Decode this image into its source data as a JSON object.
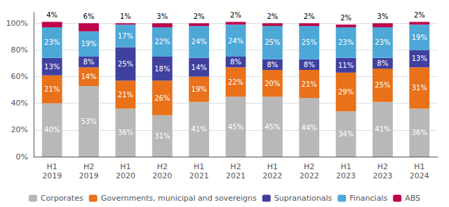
{
  "chart_data": {
    "type": "bar",
    "stacked": true,
    "categories": [
      "H1\n2019",
      "H2\n2019",
      "H1\n2020",
      "H2\n2020",
      "H1\n2021",
      "H2\n2021",
      "H1\n2022",
      "H2\n2022",
      "H1\n2023",
      "H2\n2023",
      "H1\n2024"
    ],
    "series": [
      {
        "name": "Corporates",
        "color": "#b8b8b8",
        "values": [
          40,
          53,
          36,
          31,
          41,
          45,
          45,
          44,
          34,
          41,
          36
        ],
        "value_labels": [
          "40%",
          "53%",
          "36%",
          "31%",
          "41%",
          "45%",
          "45%",
          "44%",
          "34%",
          "41%",
          "36%"
        ]
      },
      {
        "name": "Governments, municipal and sovereigns",
        "color": "#e8711a",
        "values": [
          21,
          14,
          21,
          26,
          19,
          22,
          20,
          21,
          29,
          25,
          31
        ],
        "value_labels": [
          "21%",
          "14%",
          "21%",
          "26%",
          "19%",
          "22%",
          "20%",
          "21%",
          "29%",
          "25%",
          "31%"
        ]
      },
      {
        "name": "Supranationals",
        "color": "#4040a0",
        "values": [
          13,
          8,
          25,
          18,
          14,
          8,
          8,
          8,
          11,
          8,
          13
        ],
        "value_labels": [
          "13%",
          "8%",
          "25%",
          "18%",
          "14%",
          "8%",
          "8%",
          "8%",
          "11%",
          "8%",
          "13%"
        ]
      },
      {
        "name": "Financials",
        "color": "#4da8d8",
        "values": [
          23,
          19,
          17,
          22,
          24,
          24,
          25,
          25,
          23,
          23,
          19
        ],
        "value_labels": [
          "23%",
          "19%",
          "17%",
          "22%",
          "24%",
          "24%",
          "25%",
          "25%",
          "23%",
          "23%",
          "19%"
        ]
      },
      {
        "name": "ABS",
        "color": "#c0004a",
        "values": [
          4,
          6,
          1,
          3,
          2,
          2,
          2,
          2,
          2,
          3,
          2
        ],
        "value_labels": [
          "4%",
          "6%",
          "1%",
          "3%",
          "2%",
          "2%",
          "2%",
          "2%",
          "2%",
          "3%",
          "2%"
        ]
      }
    ],
    "ylim": [
      0,
      108
    ],
    "yticks": [
      {
        "value": 0,
        "label": "0%"
      },
      {
        "value": 20,
        "label": "20%"
      },
      {
        "value": 40,
        "label": "40%"
      },
      {
        "value": 60,
        "label": "60%"
      },
      {
        "value": 80,
        "label": "80%"
      },
      {
        "value": 100,
        "label": "100%"
      }
    ],
    "grid": true,
    "legend": "bottom",
    "data_labels": true
  }
}
